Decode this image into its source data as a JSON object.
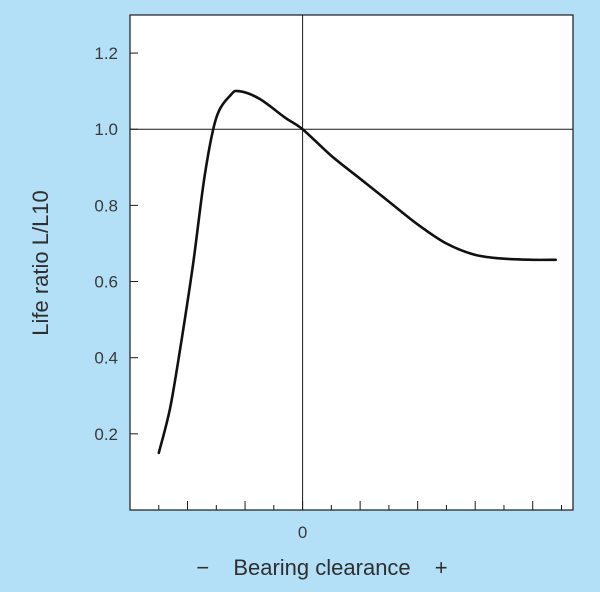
{
  "colors": {
    "background": "#b3e0f7",
    "plot_area": "#ffffff",
    "axis": "#1a1a1a",
    "curve": "#111111",
    "text": "#333333"
  },
  "chart_data": {
    "type": "line",
    "title": "",
    "xlabel": {
      "minus": "−",
      "text": "Bearing clearance",
      "plus": "+"
    },
    "ylabel": "Life ratio  L/L10",
    "xlim": [
      -6,
      9.4
    ],
    "ylim": [
      0,
      1.3
    ],
    "x_tick_values": [
      -5,
      -4,
      -3,
      -2,
      -1,
      0,
      1,
      2,
      3,
      4,
      5,
      6,
      7,
      8,
      9
    ],
    "x_tick_label": {
      "value": 0,
      "text": "0"
    },
    "y_ticks": [
      {
        "value": 0.2,
        "label": "0.2"
      },
      {
        "value": 0.4,
        "label": "0.4"
      },
      {
        "value": 0.6,
        "label": "0.6"
      },
      {
        "value": 0.8,
        "label": "0.8"
      },
      {
        "value": 1.0,
        "label": "1.0"
      },
      {
        "value": 1.2,
        "label": "1.2"
      }
    ],
    "reference_lines": {
      "vertical_x": 0,
      "horizontal_y": 1.0
    },
    "grid": false,
    "series": [
      {
        "points": [
          [
            -5.0,
            0.15
          ],
          [
            -4.6,
            0.27
          ],
          [
            -4.2,
            0.45
          ],
          [
            -3.8,
            0.65
          ],
          [
            -3.4,
            0.88
          ],
          [
            -3.0,
            1.03
          ],
          [
            -2.5,
            1.09
          ],
          [
            -2.2,
            1.1
          ],
          [
            -1.5,
            1.08
          ],
          [
            -0.6,
            1.03
          ],
          [
            0.0,
            1.0
          ],
          [
            1.0,
            0.93
          ],
          [
            2.0,
            0.87
          ],
          [
            3.0,
            0.81
          ],
          [
            4.0,
            0.75
          ],
          [
            5.0,
            0.7
          ],
          [
            6.0,
            0.67
          ],
          [
            7.0,
            0.66
          ],
          [
            8.0,
            0.657
          ],
          [
            8.8,
            0.657
          ]
        ]
      }
    ]
  }
}
